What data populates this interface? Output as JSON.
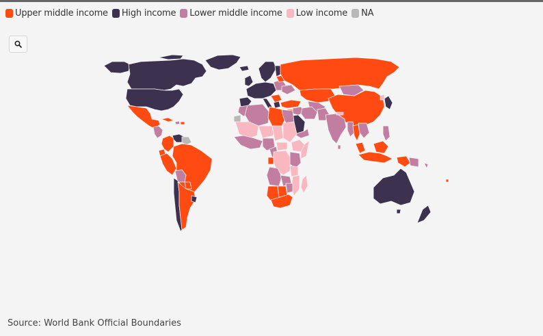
{
  "legend": [
    {
      "label": "Upper middle income",
      "color": "#ff4a12"
    },
    {
      "label": "High income",
      "color": "#3d3150"
    },
    {
      "label": "Lower middle income",
      "color": "#c27ea0"
    },
    {
      "label": "Low income",
      "color": "#f9b8bf"
    },
    {
      "label": "NA",
      "color": "#b8b8b8"
    }
  ],
  "colors": {
    "upper_middle": "#ff4a12",
    "high": "#3d3150",
    "lower_middle": "#c27ea0",
    "low": "#f9b8bf",
    "na": "#b8b8b8",
    "border": "#f4f4f4"
  },
  "zoom_icon": "magnifier-icon",
  "source": "Source: World Bank Official Boundaries"
}
